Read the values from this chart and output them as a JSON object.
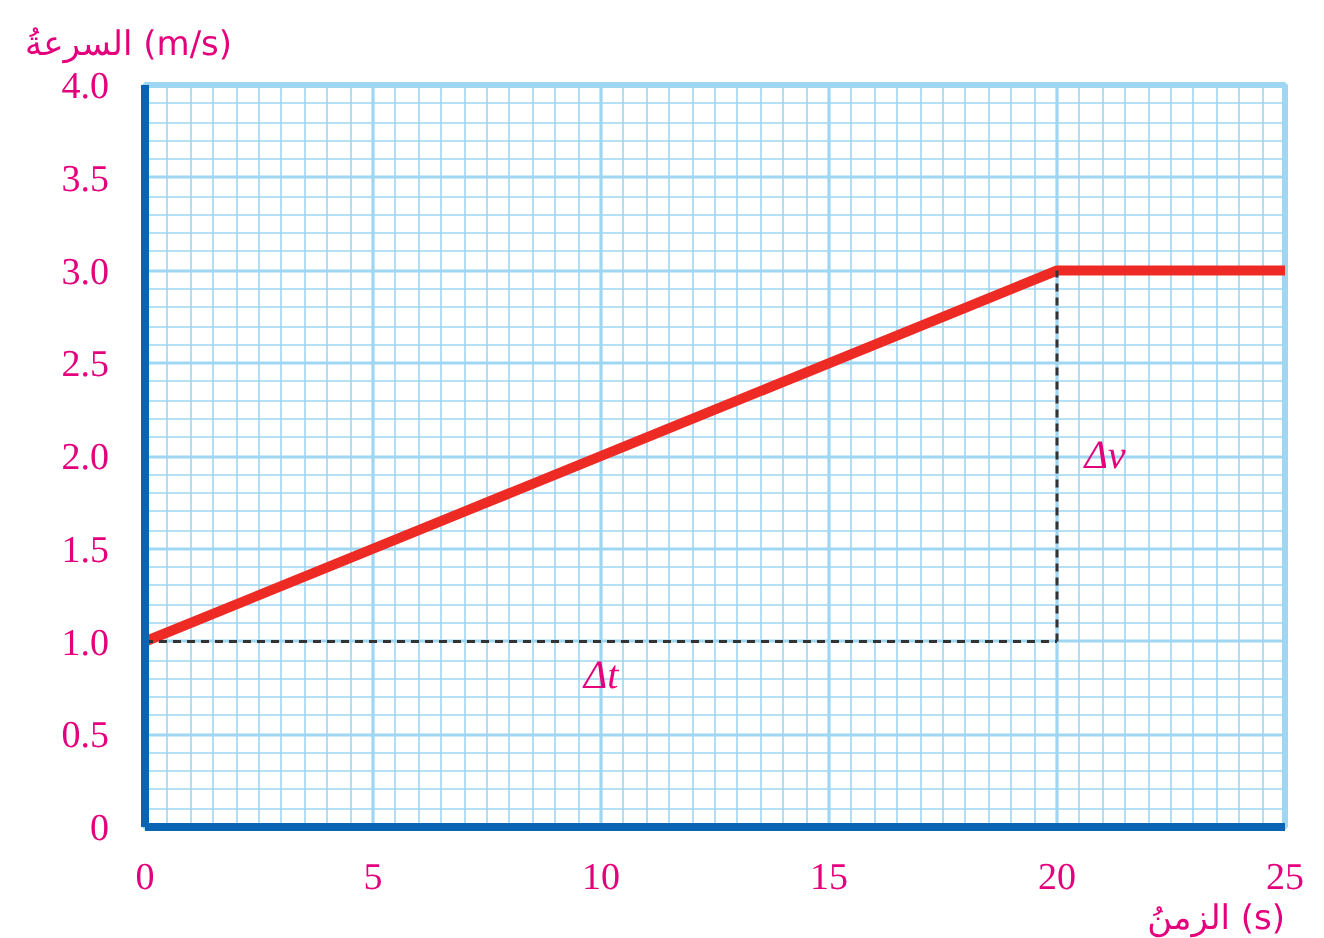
{
  "chart_data": {
    "type": "line",
    "xlabel": "الزمنُ (s)",
    "ylabel": "السرعةُ (m/s)",
    "xlim": [
      0,
      25
    ],
    "ylim": [
      0,
      4
    ],
    "xticks": [
      0,
      {
        "value": 0.5,
        "label": null
      },
      {
        "value": 1,
        "label": null
      },
      {
        "value": 1.5,
        "label": null
      },
      {
        "value": 2,
        "label": null
      },
      {
        "value": 2.5,
        "label": null
      },
      {
        "value": 3,
        "label": null
      },
      {
        "value": 3.5,
        "label": null
      },
      {
        "value": 4,
        "label": null
      },
      {
        "value": 4.5,
        "label": null
      },
      5,
      {
        "value": 5.5,
        "label": null
      },
      {
        "value": 6,
        "label": null
      },
      {
        "value": 6.5,
        "label": null
      },
      {
        "value": 7,
        "label": null
      },
      {
        "value": 7.5,
        "label": null
      },
      {
        "value": 8,
        "label": null
      },
      {
        "value": 8.5,
        "label": null
      },
      {
        "value": 9,
        "label": null
      },
      {
        "value": 9.5,
        "label": null
      },
      10,
      {
        "value": 10.5,
        "label": null
      },
      {
        "value": 11,
        "label": null
      },
      {
        "value": 11.5,
        "label": null
      },
      {
        "value": 12,
        "label": null
      },
      {
        "value": 12.5,
        "label": null
      },
      {
        "value": 13,
        "label": null
      },
      {
        "value": 13.5,
        "label": null
      },
      {
        "value": 14,
        "label": null
      },
      {
        "value": 14.5,
        "label": null
      },
      15,
      {
        "value": 15.5,
        "label": null
      },
      {
        "value": 16,
        "label": null
      },
      {
        "value": 16.5,
        "label": null
      },
      {
        "value": 17,
        "label": null
      },
      {
        "value": 17.5,
        "label": null
      },
      {
        "value": 18,
        "label": null
      },
      {
        "value": 18.5,
        "label": null
      },
      {
        "value": 19,
        "label": null
      },
      {
        "value": 19.5,
        "label": null
      },
      20,
      {
        "value": 20.5,
        "label": null
      },
      {
        "value": 21,
        "label": null
      },
      {
        "value": 21.5,
        "label": null
      },
      {
        "value": 22,
        "label": null
      },
      {
        "value": 22.5,
        "label": null
      },
      {
        "value": 23,
        "label": null
      },
      {
        "value": 23.5,
        "label": null
      },
      {
        "value": 24,
        "label": null
      },
      {
        "value": 24.5,
        "label": null
      },
      25
    ],
    "yticks": [
      0,
      {
        "value": 0.1,
        "label": null
      },
      {
        "value": 0.2,
        "label": null
      },
      {
        "value": 0.3,
        "label": null
      },
      {
        "value": 0.4,
        "label": null
      },
      0.5,
      {
        "value": 0.6,
        "label": null
      },
      {
        "value": 0.7,
        "label": null
      },
      {
        "value": 0.8,
        "label": null
      },
      {
        "value": 0.9,
        "label": null
      },
      {
        "value": 1,
        "label": "1.0"
      },
      {
        "value": 1.1,
        "label": null
      },
      {
        "value": 1.2,
        "label": null
      },
      {
        "value": 1.3,
        "label": null
      },
      {
        "value": 1.4,
        "label": null
      },
      1.5,
      {
        "value": 1.6,
        "label": null
      },
      {
        "value": 1.7,
        "label": null
      },
      {
        "value": 1.8,
        "label": null
      },
      {
        "value": 1.9,
        "label": null
      },
      {
        "value": 2,
        "label": "2.0"
      },
      {
        "value": 2.1,
        "label": null
      },
      {
        "value": 2.2,
        "label": null
      },
      {
        "value": 2.3,
        "label": null
      },
      {
        "value": 2.4,
        "label": null
      },
      2.5,
      {
        "value": 2.6,
        "label": null
      },
      {
        "value": 2.7,
        "label": null
      },
      {
        "value": 2.8,
        "label": null
      },
      {
        "value": 2.9,
        "label": null
      },
      {
        "value": 3,
        "label": "3.0"
      },
      {
        "value": 3.1,
        "label": null
      },
      {
        "value": 3.2,
        "label": null
      },
      {
        "value": 3.3,
        "label": null
      },
      {
        "value": 3.4,
        "label": null
      },
      3.5,
      {
        "value": 3.6,
        "label": null
      },
      {
        "value": 3.7,
        "label": null
      },
      {
        "value": 3.8,
        "label": null
      },
      {
        "value": 3.9,
        "label": null
      },
      {
        "value": 4,
        "label": "4.0"
      }
    ],
    "grid": true,
    "series": [
      {
        "color": "#ee2a24",
        "x": [
          0,
          20,
          25
        ],
        "values": [
          1,
          3,
          3
        ],
        "line_style": "solid"
      },
      {
        "color": "#333333",
        "x": [
          20,
          20
        ],
        "values": [
          1,
          3
        ],
        "line_style": "dashed"
      },
      {
        "color": "#333333",
        "x": [
          0,
          20
        ],
        "values": [
          1,
          1
        ],
        "line_style": "dashed"
      }
    ],
    "annotations": [
      "Δv",
      "Δt"
    ]
  }
}
